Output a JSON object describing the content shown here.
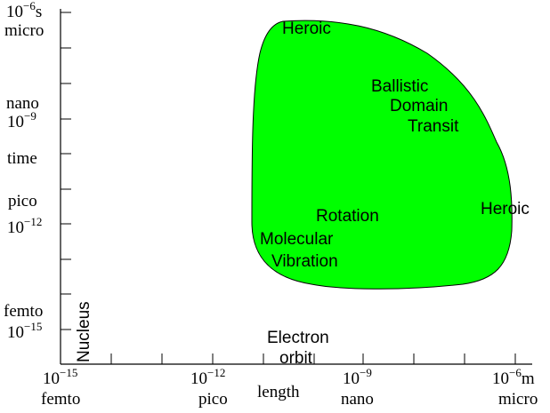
{
  "colors": {
    "region_fill": "#00ff00",
    "region_stroke": "#000000",
    "axis": "#000000",
    "background": "#ffffff"
  },
  "axes": {
    "x_label": "length",
    "x_ticks": [
      {
        "exponent": "−15",
        "unit": "",
        "prefix": "femto"
      },
      {
        "exponent": "−12",
        "unit": "",
        "prefix": "pico"
      },
      {
        "exponent": "−9",
        "unit": "",
        "prefix": "nano"
      },
      {
        "exponent": "−6",
        "unit": "m",
        "prefix": "micro"
      }
    ],
    "y_label": "time",
    "y_ticks": [
      {
        "exponent": "−6",
        "unit": "s",
        "prefix": "micro"
      },
      {
        "exponent": "−9",
        "unit": "",
        "prefix": "nano"
      },
      {
        "exponent": "−12",
        "unit": "",
        "prefix": "pico"
      },
      {
        "exponent": "−15",
        "unit": "",
        "prefix": "femto"
      }
    ],
    "tick_base": "10"
  },
  "region": {
    "labels": {
      "heroic_top": "Heroic",
      "ballistic": "Ballistic",
      "domain": "Domain",
      "transit": "Transit",
      "heroic_right": "Heroic",
      "rotation": "Rotation",
      "molecular": "Molecular",
      "vibration": "Vibration"
    }
  },
  "annotations": {
    "nucleus": "Nucleus",
    "electron": "Electron",
    "orbit": "orbit"
  }
}
